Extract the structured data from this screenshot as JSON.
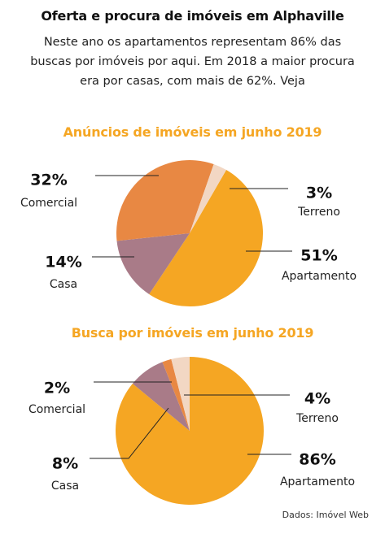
{
  "title": "Oferta e procura de imóveis em Alphaville",
  "subtitle": "Neste ano os apartamentos representam 86% das buscas por imóveis por aqui. Em 2018 a maior procura era por casas, com mais de 62%. Veja",
  "source": "Dados: Imóvel Web",
  "colors": {
    "apartamento": "#f5a623",
    "comercial": "#e88843",
    "terreno": "#f2d7c3",
    "casa": "#a97b88",
    "title_accent": "#f5a623"
  },
  "chart_data": [
    {
      "type": "pie",
      "title": "Anúncios de imóveis em junho 2019",
      "slices": [
        {
          "name": "Apartamento",
          "value": 51,
          "label": "51%"
        },
        {
          "name": "Casa",
          "value": 14,
          "label": "14%"
        },
        {
          "name": "Comercial",
          "value": 32,
          "label": "32%"
        },
        {
          "name": "Terreno",
          "value": 3,
          "label": "3%"
        }
      ]
    },
    {
      "type": "pie",
      "title": "Busca por imóveis em junho 2019",
      "slices": [
        {
          "name": "Apartamento",
          "value": 86,
          "label": "86%"
        },
        {
          "name": "Casa",
          "value": 8,
          "label": "8%"
        },
        {
          "name": "Comercial",
          "value": 2,
          "label": "2%"
        },
        {
          "name": "Terreno",
          "value": 4,
          "label": "4%"
        }
      ]
    }
  ]
}
